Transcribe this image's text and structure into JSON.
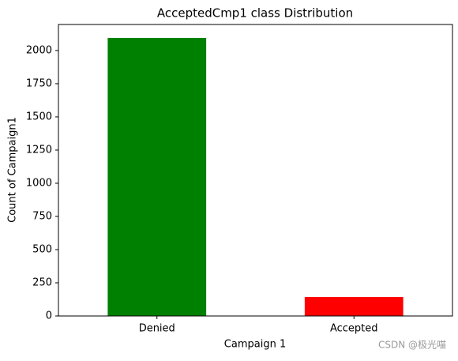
{
  "chart_data": {
    "type": "bar",
    "title": "AcceptedCmp1 class Distribution",
    "x_label": "Campaign 1",
    "y_label": "Count of Campaign1",
    "categories": [
      "Denied",
      "Accepted"
    ],
    "values": [
      2095,
      143
    ],
    "colors": [
      "#008000",
      "#ff0000"
    ],
    "ylim": [
      0,
      2196
    ],
    "yticks": [
      0,
      250,
      500,
      750,
      1000,
      1250,
      1500,
      1750,
      2000
    ],
    "watermark": "CSDN @极光喵"
  }
}
